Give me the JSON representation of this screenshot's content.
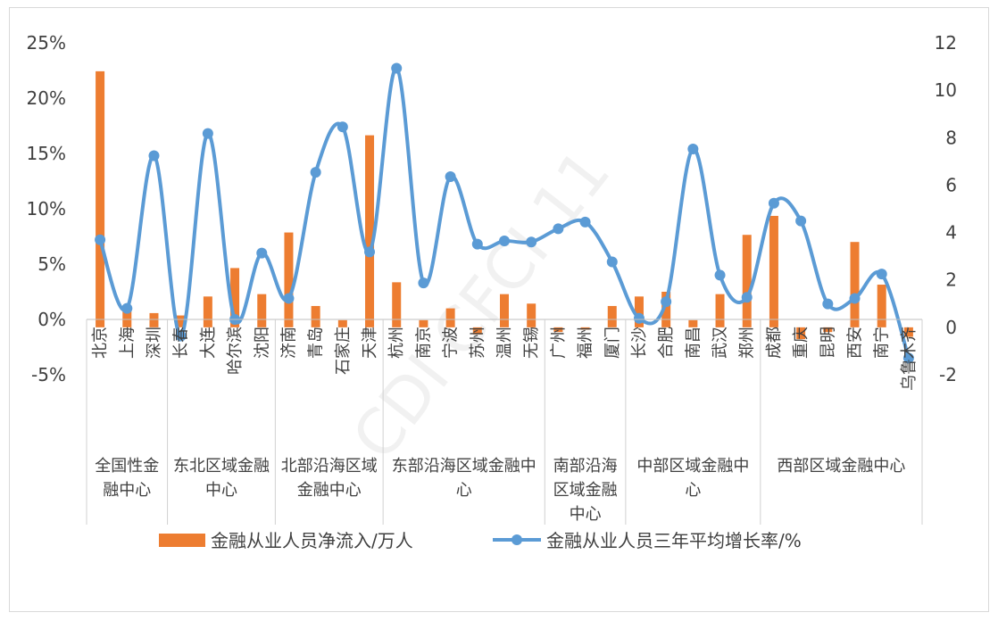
{
  "chart_data": {
    "type": "bar+line",
    "watermark": "CDI CFCI 11",
    "categories": [
      "北京",
      "上海",
      "深圳",
      "长春",
      "大连",
      "哈尔滨",
      "沈阳",
      "济南",
      "青岛",
      "石家庄",
      "天津",
      "杭州",
      "南京",
      "宁波",
      "苏州",
      "温州",
      "无锡",
      "广州",
      "福州",
      "厦门",
      "长沙",
      "合肥",
      "南昌",
      "武汉",
      "郑州",
      "成都",
      "重庆",
      "昆明",
      "西安",
      "南宁",
      "乌鲁木齐"
    ],
    "groups": [
      {
        "label": "全国性金融中心",
        "count": 3
      },
      {
        "label": "东北区域金融中心",
        "count": 4
      },
      {
        "label": "北部沿海区域金融中心",
        "count": 4
      },
      {
        "label": "东部沿海区域金融中心",
        "count": 6
      },
      {
        "label": "南部沿海区域金融中心",
        "count": 3
      },
      {
        "label": "中部区域金融中心",
        "count": 5
      },
      {
        "label": "西部区域金融中心",
        "count": 6
      }
    ],
    "series": [
      {
        "name": "金融从业人员净流入/万人",
        "type": "bar",
        "axis": "right",
        "color": "#ED7D31",
        "values": [
          10.8,
          0.8,
          0.6,
          0.5,
          1.3,
          2.5,
          1.4,
          4.0,
          0.9,
          0.3,
          8.1,
          1.9,
          0.3,
          0.8,
          -0.3,
          1.4,
          1.0,
          -0.2,
          -0.1,
          0.9,
          1.3,
          1.5,
          0.3,
          1.4,
          3.9,
          4.7,
          -0.5,
          -0.2,
          3.6,
          1.8,
          -0.4
        ]
      },
      {
        "name": "金融从业人员三年平均增长率/%",
        "type": "line",
        "axis": "left",
        "color": "#5B9BD5",
        "values": [
          7.2,
          1.0,
          14.8,
          -1.5,
          16.8,
          0.0,
          6.0,
          1.9,
          13.3,
          17.4,
          6.1,
          22.7,
          3.3,
          12.9,
          6.8,
          7.1,
          7.0,
          8.2,
          8.8,
          5.2,
          0.1,
          1.6,
          15.4,
          4.0,
          2.0,
          10.5,
          8.9,
          1.4,
          1.9,
          4.1,
          -3.5
        ]
      }
    ],
    "y_left": {
      "min": -5,
      "max": 25,
      "ticks": [
        "-5%",
        "0%",
        "5%",
        "10%",
        "15%",
        "20%",
        "25%"
      ]
    },
    "y_right": {
      "min": -2,
      "max": 12,
      "ticks": [
        "-2",
        "0",
        "2",
        "4",
        "6",
        "8",
        "10",
        "12"
      ]
    },
    "legend_position": "bottom",
    "grid": false
  },
  "colors": {
    "bar": "#ED7D31",
    "line": "#5B9BD5",
    "negative_tick": "#C00000",
    "text": "#404040"
  }
}
